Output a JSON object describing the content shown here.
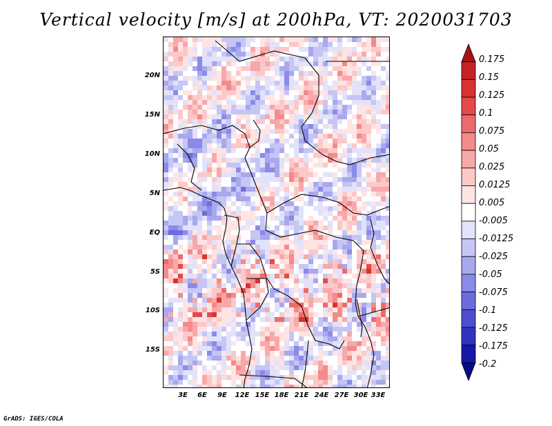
{
  "title": "Vertical velocity [m/s] at 200hPa, VT: 2020031703",
  "map": {
    "lat_labels": [
      "20N",
      "15N",
      "10N",
      "5N",
      "EQ",
      "5S",
      "10S",
      "15S"
    ],
    "lon_labels": [
      "3E",
      "6E",
      "9E",
      "12E",
      "15E",
      "18E",
      "21E",
      "24E",
      "27E",
      "30E",
      "33E"
    ],
    "lat_range": [
      -20.0,
      25.0
    ],
    "lon_range": [
      0.0,
      34.0
    ]
  },
  "colorbar": {
    "labels": [
      "0.175",
      "0.15",
      "0.125",
      "0.1",
      "0.075",
      "0.05",
      "0.025",
      "0.0125",
      "0.005",
      "-0.005",
      "-0.0125",
      "-0.025",
      "-0.05",
      "-0.075",
      "-0.1",
      "-0.125",
      "-0.175",
      "-0.2"
    ],
    "colors": [
      "#a81414",
      "#c42424",
      "#d83232",
      "#e44a4a",
      "#ee6a6a",
      "#f48a8a",
      "#f8a8a8",
      "#fcc8c8",
      "#ffe4e4",
      "#ffffff",
      "#e2e2fa",
      "#c6c6f4",
      "#a8a8ee",
      "#8a8ae8",
      "#6c6cde",
      "#4e4ed2",
      "#3232c0",
      "#1818a6",
      "#0a0a88"
    ]
  },
  "credit": "GrADS: IGES/COLA"
}
